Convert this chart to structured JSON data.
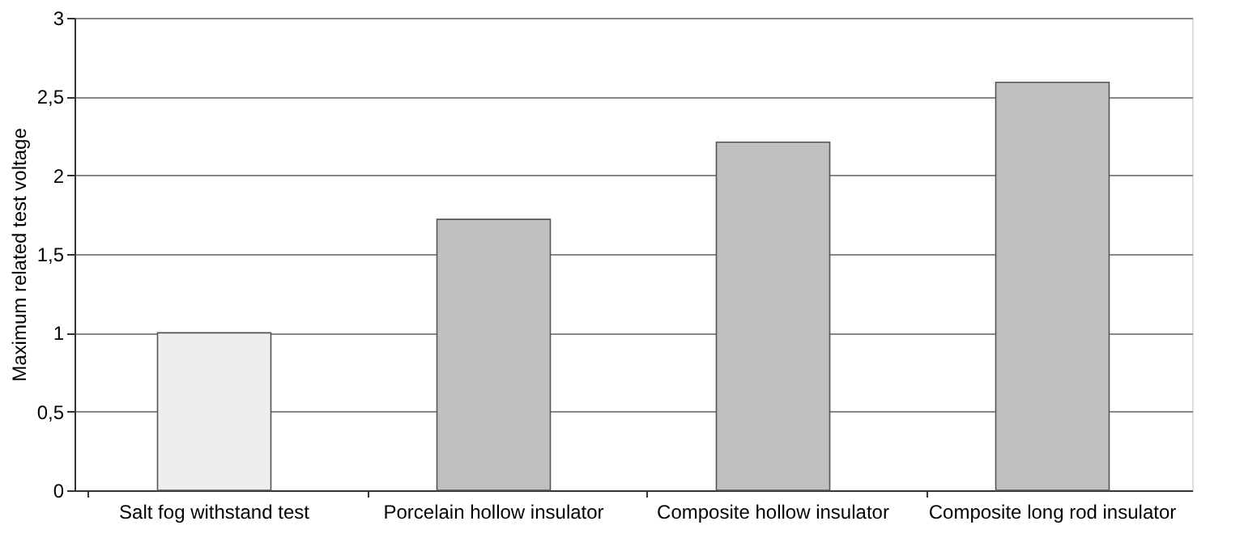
{
  "chart_data": {
    "type": "bar",
    "ylabel": "Maximum related test voltage",
    "categories": [
      "Salt fog withstand test",
      "Porcelain hollow insulator",
      "Composite hollow insulator",
      "Composite long rod insulator"
    ],
    "values": [
      1,
      1.72,
      2.21,
      2.59
    ],
    "colors": [
      "#eeeeee",
      "#c0c0c0",
      "#c0c0c0",
      "#c0c0c0"
    ],
    "ylim": [
      0,
      3
    ],
    "yticks": [
      0,
      {
        "value": 0.5,
        "label": "0,5"
      },
      1,
      {
        "value": 1.5,
        "label": "1,5"
      },
      2,
      {
        "value": 2.5,
        "label": "2,5"
      },
      3
    ],
    "grid": "y"
  }
}
